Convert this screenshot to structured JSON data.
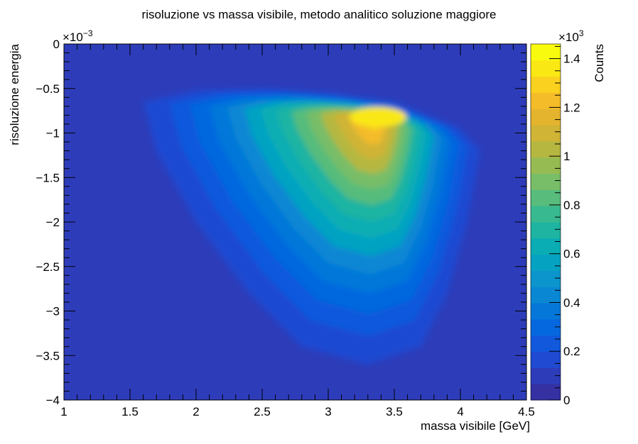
{
  "chart_data": {
    "type": "heatmap",
    "title": "risoluzione vs massa visibile,  metodo analitico soluzione maggiore",
    "xlabel": "massa visibile [GeV]",
    "ylabel": "risoluzione energia",
    "zlabel": "Counts",
    "xlim": [
      1,
      4.5
    ],
    "ylim": [
      -0.004,
      0
    ],
    "zlim": [
      0,
      1460
    ],
    "x_ticks": [
      1,
      1.5,
      2,
      2.5,
      3,
      3.5,
      4,
      4.5
    ],
    "x_tick_labels": [
      "1",
      "1.5",
      "2",
      "2.5",
      "3",
      "3.5",
      "4",
      "4.5"
    ],
    "y_ticks": [
      0,
      -0.0005,
      -0.001,
      -0.0015,
      -0.002,
      -0.0025,
      -0.003,
      -0.0035,
      -0.004
    ],
    "y_tick_labels": [
      "0",
      "−0.5",
      "−1",
      "−1.5",
      "−2",
      "−2.5",
      "−3",
      "−3.5",
      "−4"
    ],
    "y_exponent_label": "×10",
    "y_exponent_power": "−3",
    "z_ticks": [
      0,
      200,
      400,
      600,
      800,
      1000,
      1200,
      1400
    ],
    "z_tick_labels": [
      "0",
      "0.2",
      "0.4",
      "0.6",
      "0.8",
      "1",
      "1.2",
      "1.4"
    ],
    "z_exponent_label": "×10",
    "z_exponent_power": "3",
    "grid": false,
    "legend": "none",
    "peak": {
      "x": 3.35,
      "y": -0.00082,
      "count": 1400
    },
    "distribution_outline": [
      [
        1.6,
        -0.00065
      ],
      [
        2.0,
        -0.00052
      ],
      [
        2.5,
        -0.0005
      ],
      [
        3.0,
        -0.00055
      ],
      [
        3.5,
        -0.00065
      ],
      [
        4.0,
        -0.00095
      ],
      [
        4.15,
        -0.0012
      ],
      [
        4.05,
        -0.002
      ],
      [
        3.9,
        -0.0028
      ],
      [
        3.7,
        -0.0034
      ],
      [
        3.3,
        -0.0036
      ],
      [
        2.8,
        -0.0034
      ],
      [
        2.4,
        -0.0028
      ],
      [
        2.0,
        -0.002
      ],
      [
        1.7,
        -0.0012
      ]
    ],
    "palette": [
      "#3531a3",
      "#2d3dba",
      "#1f4ad1",
      "#1158dc",
      "#0568df",
      "#0477d9",
      "#0a87d3",
      "#0b95cc",
      "#06a2c2",
      "#0aadb4",
      "#1fb4a2",
      "#39b98f",
      "#57bc7c",
      "#78bd67",
      "#97bb53",
      "#b5b741",
      "#d0b435",
      "#e5b42f",
      "#f4bc29",
      "#fad11e",
      "#fae814",
      "#f9fb0e"
    ]
  }
}
